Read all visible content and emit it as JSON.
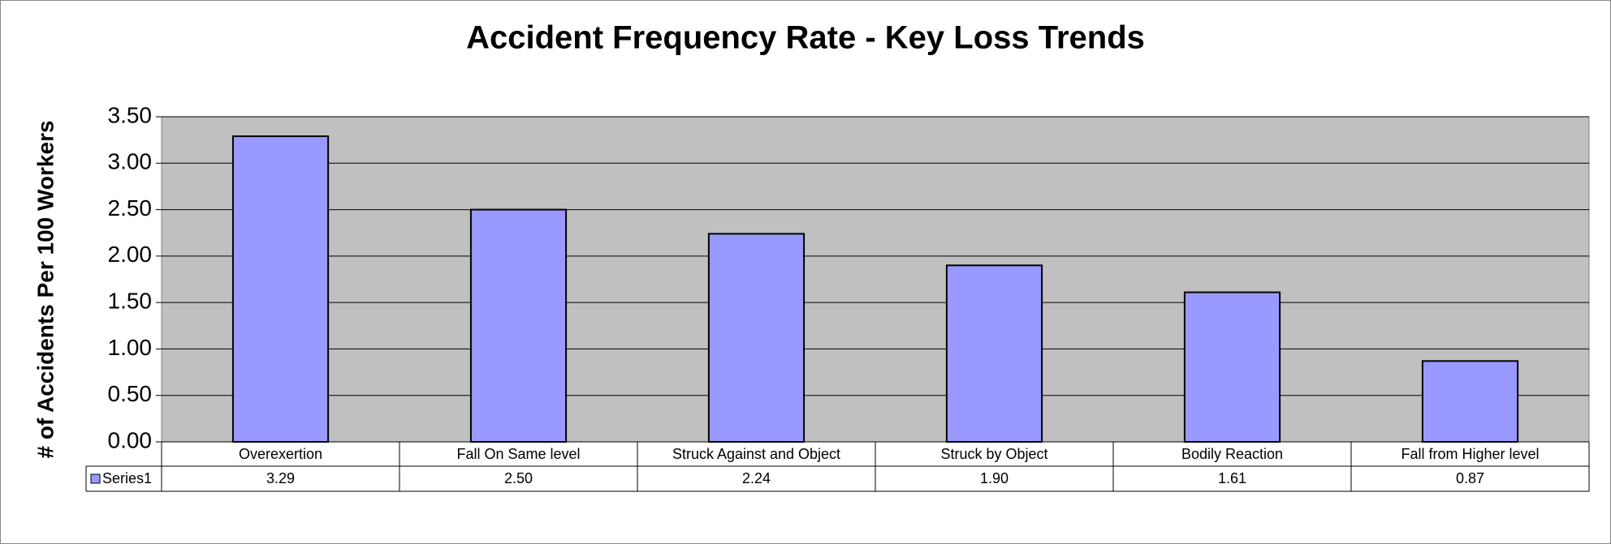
{
  "chart_data": {
    "type": "bar",
    "title": "Accident Frequency Rate - Key Loss Trends",
    "y_label": "# of Accidents Per 100 Workers",
    "categories": [
      "Overexertion",
      "Fall On Same level",
      "Struck Against and Object",
      "Struck by Object",
      "Bodily Reaction",
      "Fall from Higher level"
    ],
    "series": [
      {
        "name": "Series1",
        "color": "#9999ff",
        "values": [
          3.29,
          2.5,
          2.24,
          1.9,
          1.61,
          0.87
        ],
        "value_labels": [
          "3.29",
          "2.50",
          "2.24",
          "1.90",
          "1.61",
          "0.87"
        ]
      }
    ],
    "ylim": [
      0,
      3.5
    ],
    "yticks": [
      {
        "value": 0,
        "label": "0.00"
      },
      {
        "value": 0.5,
        "label": "0.50"
      },
      {
        "value": 1,
        "label": "1.00"
      },
      {
        "value": 1.5,
        "label": "1.50"
      },
      {
        "value": 2,
        "label": "2.00"
      },
      {
        "value": 2.5,
        "label": "2.50"
      },
      {
        "value": 3,
        "label": "3.00"
      },
      {
        "value": 3.5,
        "label": "3.50"
      }
    ],
    "grid": true,
    "plot_background": "#c0c0c0"
  }
}
